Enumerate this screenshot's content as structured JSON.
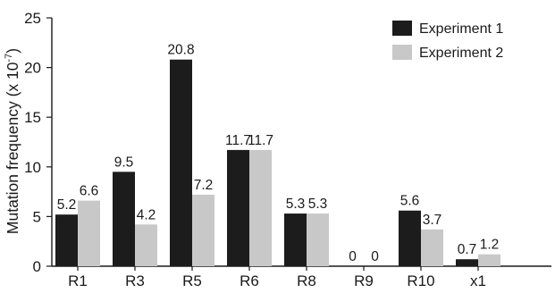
{
  "chart_data": {
    "type": "bar",
    "categories": [
      "R1",
      "R3",
      "R5",
      "R6",
      "R8",
      "R9",
      "R10",
      "x1"
    ],
    "series": [
      {
        "name": "Experiment 1",
        "color": "#1c1c1c",
        "values": [
          5.2,
          9.5,
          20.8,
          11.7,
          5.3,
          0,
          5.6,
          0.7
        ],
        "labels": [
          "5.2",
          "9.5",
          "20.8",
          "11.7",
          "5.3",
          "0",
          "5.6",
          "0.7"
        ]
      },
      {
        "name": "Experiment 2",
        "color": "#c8c8c8",
        "values": [
          6.6,
          4.2,
          7.2,
          11.7,
          5.3,
          0,
          3.7,
          1.2
        ],
        "labels": [
          "6.6",
          "4.2",
          "7.2",
          "11.7",
          "5.3",
          "0",
          "3.7",
          "1.2"
        ]
      }
    ],
    "ylabel_main": "Mutation frequency (x 10",
    "ylabel_exp": "-7",
    "ylabel_end": ")",
    "ylim": [
      0,
      25
    ],
    "yticks": [
      0,
      5,
      10,
      15,
      20,
      25
    ],
    "legend_position": "top-right",
    "grid": false
  }
}
